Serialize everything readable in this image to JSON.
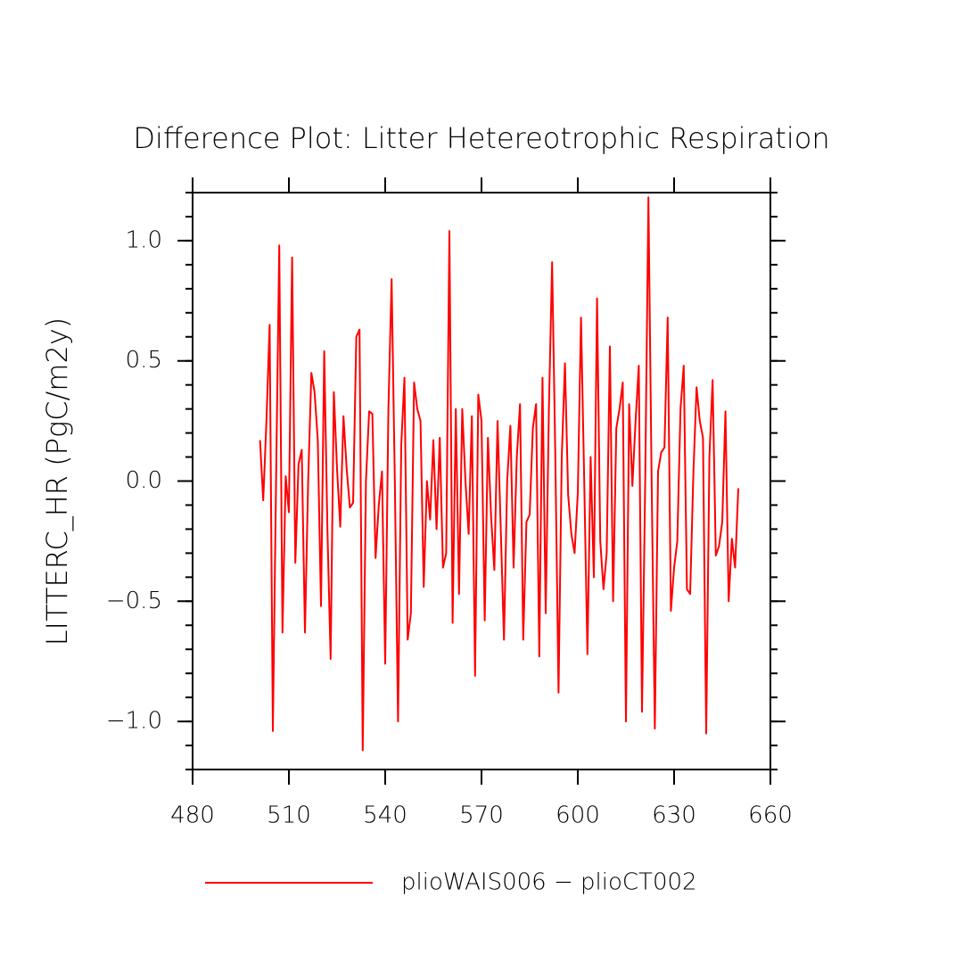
{
  "chart_data": {
    "type": "line",
    "title": "Difference Plot: Litter Hetereotrophic Respiration",
    "ylabel": "LITTERC_HR  (PgC/m2y)",
    "x": [
      501,
      502,
      503,
      504,
      505,
      506,
      507,
      508,
      509,
      510,
      511,
      512,
      513,
      514,
      515,
      516,
      517,
      518,
      519,
      520,
      521,
      522,
      523,
      524,
      525,
      526,
      527,
      528,
      529,
      530,
      531,
      532,
      533,
      534,
      535,
      536,
      537,
      538,
      539,
      540,
      541,
      542,
      543,
      544,
      545,
      546,
      547,
      548,
      549,
      550,
      551,
      552,
      553,
      554,
      555,
      556,
      557,
      558,
      559,
      560,
      561,
      562,
      563,
      564,
      565,
      566,
      567,
      568,
      569,
      570,
      571,
      572,
      573,
      574,
      575,
      576,
      577,
      578,
      579,
      580,
      581,
      582,
      583,
      584,
      585,
      586,
      587,
      588,
      589,
      590,
      591,
      592,
      593,
      594,
      595,
      596,
      597,
      598,
      599,
      600,
      601,
      602,
      603,
      604,
      605,
      606,
      607,
      608,
      609,
      610,
      611,
      612,
      613,
      614,
      615,
      616,
      617,
      618,
      619,
      620,
      621,
      622,
      623,
      624,
      625,
      626,
      627,
      628,
      629,
      630,
      631,
      632,
      633,
      634,
      635,
      636,
      637,
      638,
      639,
      640,
      641,
      642,
      643,
      644,
      645,
      646,
      647,
      648,
      649,
      650
    ],
    "series": [
      {
        "name": "plioWAIS006 − plioCT002",
        "color": "#ff0000",
        "values": [
          0.17,
          -0.08,
          0.25,
          0.65,
          -1.04,
          0.0,
          0.98,
          -0.63,
          0.02,
          -0.13,
          0.93,
          -0.34,
          0.07,
          0.13,
          -0.63,
          0.0,
          0.45,
          0.37,
          0.17,
          -0.52,
          0.54,
          -0.2,
          -0.74,
          0.37,
          0.05,
          -0.19,
          0.27,
          0.05,
          -0.11,
          -0.09,
          0.6,
          0.63,
          -1.12,
          0.0,
          0.29,
          0.28,
          -0.32,
          -0.1,
          0.04,
          -0.76,
          0.3,
          0.84,
          0.0,
          -1.0,
          0.15,
          0.43,
          -0.66,
          -0.55,
          0.41,
          0.3,
          0.25,
          -0.44,
          0.0,
          -0.16,
          0.17,
          -0.2,
          0.18,
          -0.36,
          -0.3,
          1.04,
          -0.59,
          0.3,
          -0.47,
          0.3,
          0.0,
          -0.22,
          0.27,
          -0.81,
          0.36,
          0.25,
          -0.58,
          0.18,
          -0.15,
          -0.37,
          0.25,
          -0.2,
          -0.66,
          0.0,
          0.23,
          -0.36,
          0.1,
          0.32,
          -0.66,
          -0.17,
          -0.14,
          0.22,
          0.32,
          -0.73,
          0.43,
          -0.55,
          0.3,
          0.91,
          0.1,
          -0.88,
          0.1,
          0.49,
          -0.06,
          -0.22,
          -0.3,
          -0.05,
          0.68,
          0.0,
          -0.72,
          0.1,
          -0.4,
          0.76,
          -0.25,
          -0.45,
          -0.3,
          0.56,
          -0.5,
          0.22,
          0.3,
          0.41,
          -1.0,
          0.32,
          -0.02,
          0.25,
          0.48,
          -0.96,
          0.0,
          1.18,
          0.0,
          -1.03,
          0.04,
          0.12,
          0.14,
          0.68,
          -0.54,
          -0.36,
          -0.25,
          0.3,
          0.48,
          -0.45,
          -0.47,
          0.03,
          0.39,
          0.25,
          0.18,
          -1.05,
          0.1,
          0.42,
          -0.31,
          -0.27,
          -0.17,
          0.29,
          -0.5,
          -0.24,
          -0.36,
          -0.03
        ]
      }
    ],
    "xlim": [
      480,
      660
    ],
    "xticks": [
      480,
      510,
      540,
      570,
      600,
      630,
      660
    ],
    "ylim": [
      -1.2,
      1.2
    ],
    "yticks": [
      {
        "value": -1.0,
        "label": "−1.0"
      },
      {
        "value": -0.5,
        "label": "−0.5"
      },
      {
        "value": 0.0,
        "label": "0.0"
      },
      {
        "value": 0.5,
        "label": "0.5"
      },
      {
        "value": 1.0,
        "label": "1.0"
      }
    ],
    "grid": false
  }
}
